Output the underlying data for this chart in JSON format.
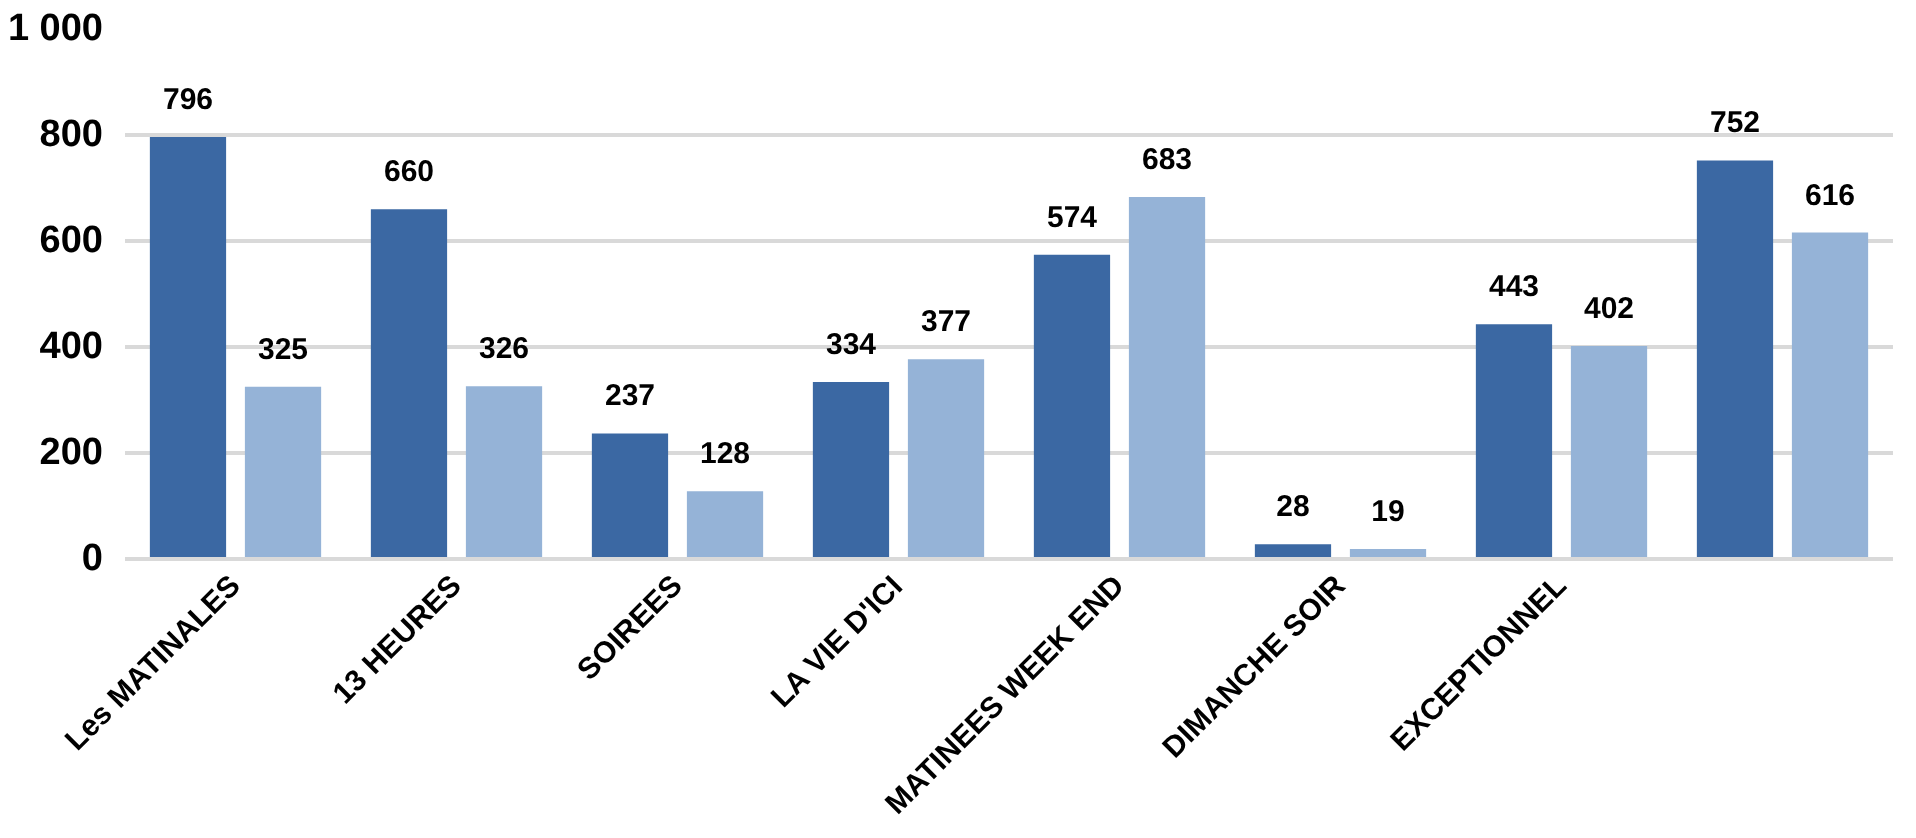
{
  "chart_data": {
    "type": "bar",
    "categories": [
      "Les MATINALES",
      "13 HEURES",
      "SOIREES",
      "LA VIE D'ICI",
      "MATINEES WEEK END",
      "DIMANCHE SOIR",
      "EXCEPTIONNEL",
      null
    ],
    "series": [
      {
        "color": "#3b68a3",
        "values": [
          796,
          660,
          237,
          334,
          574,
          28,
          443,
          752
        ]
      },
      {
        "color": "#95b3d7",
        "values": [
          325,
          326,
          128,
          377,
          683,
          19,
          402,
          616
        ]
      }
    ],
    "ylim": [
      0,
      1000
    ],
    "yticks": [
      0,
      200,
      400,
      600,
      800,
      {
        "value": 1000,
        "label": "1 000"
      }
    ],
    "grid": "y",
    "data_labels": true
  }
}
